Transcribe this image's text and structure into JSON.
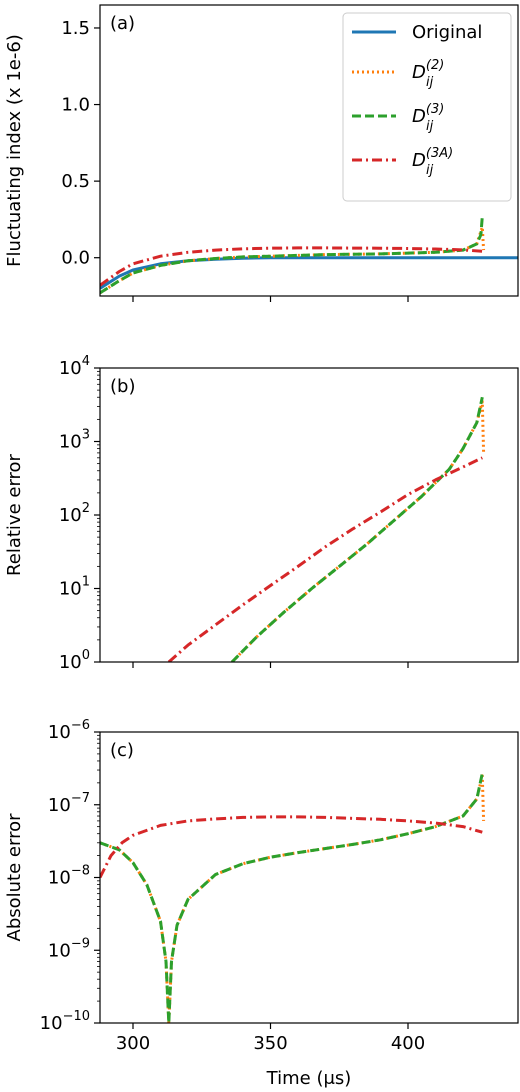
{
  "chart_data": [
    {
      "type": "line",
      "panel_label": "(a)",
      "ylabel": "Fluctuating index (x 1e-6)",
      "xlim": [
        288,
        440
      ],
      "ylim": [
        -0.25,
        1.65
      ],
      "yscale": "linear",
      "xticks": [
        300,
        350,
        400
      ],
      "xticklabels": [
        "",
        "",
        ""
      ],
      "yticks": [
        0.0,
        0.5,
        1.0,
        1.5
      ],
      "yticklabels": [
        "0.0",
        "0.5",
        "1.0",
        "1.5"
      ],
      "grid": false,
      "legend_placement": "top-right",
      "series": [
        {
          "name": "Original",
          "color": "#1f77b4",
          "style": "solid",
          "x": [
            288,
            295,
            300,
            310,
            320,
            330,
            340,
            350,
            370,
            390,
            410,
            427,
            440
          ],
          "y": [
            -0.2,
            -0.12,
            -0.08,
            -0.04,
            -0.02,
            -0.01,
            -0.004,
            0.0,
            0.0,
            0.0,
            0.0,
            0.0,
            0.0
          ]
        },
        {
          "name": "D_ij^(2)",
          "color": "#ff7f0e",
          "style": "dotted",
          "x": [
            288,
            295,
            300,
            310,
            320,
            330,
            340,
            350,
            370,
            390,
            410,
            420,
            425,
            427,
            427.5
          ],
          "y": [
            -0.23,
            -0.15,
            -0.1,
            -0.05,
            -0.02,
            -0.005,
            0.005,
            0.01,
            0.02,
            0.025,
            0.035,
            0.05,
            0.09,
            0.2,
            0.05
          ]
        },
        {
          "name": "D_ij^(3)",
          "color": "#2ca02c",
          "style": "dashed",
          "x": [
            288,
            295,
            300,
            310,
            320,
            330,
            340,
            350,
            370,
            390,
            410,
            420,
            425,
            426.5,
            427
          ],
          "y": [
            -0.23,
            -0.15,
            -0.1,
            -0.05,
            -0.02,
            -0.005,
            0.005,
            0.01,
            0.02,
            0.025,
            0.035,
            0.05,
            0.09,
            0.15,
            0.27
          ]
        },
        {
          "name": "D_ij^(3A)",
          "color": "#d62728",
          "style": "dashdot",
          "x": [
            288,
            295,
            300,
            310,
            320,
            330,
            340,
            350,
            360,
            370,
            380,
            390,
            400,
            410,
            420,
            427
          ],
          "y": [
            -0.18,
            -0.09,
            -0.04,
            0.01,
            0.035,
            0.05,
            0.058,
            0.062,
            0.064,
            0.064,
            0.063,
            0.062,
            0.06,
            0.057,
            0.051,
            0.042
          ]
        }
      ],
      "legend": [
        {
          "label": "Original",
          "base": "Original",
          "sub": "",
          "sup": ""
        },
        {
          "label": "D_ij^(2)",
          "base": "D",
          "sub": "ij",
          "sup": "(2)"
        },
        {
          "label": "D_ij^(3)",
          "base": "D",
          "sub": "ij",
          "sup": "(3)"
        },
        {
          "label": "D_ij^(3A)",
          "base": "D",
          "sub": "ij",
          "sup": "(3A)"
        }
      ]
    },
    {
      "type": "line",
      "panel_label": "(b)",
      "ylabel": "Relative error",
      "xlim": [
        288,
        440
      ],
      "ylim": [
        1,
        10000
      ],
      "yscale": "log",
      "xticks": [
        300,
        350,
        400
      ],
      "xticklabels": [
        "",
        "",
        ""
      ],
      "yticks": [
        1,
        10,
        100,
        1000,
        10000
      ],
      "yticklabels": [
        {
          "base": "10",
          "exp": "0"
        },
        {
          "base": "10",
          "exp": "1"
        },
        {
          "base": "10",
          "exp": "2"
        },
        {
          "base": "10",
          "exp": "3"
        },
        {
          "base": "10",
          "exp": "4"
        }
      ],
      "grid": false,
      "series": [
        {
          "name": "D_ij^(2)",
          "color": "#ff7f0e",
          "style": "dotted",
          "x": [
            336,
            345,
            355,
            365,
            375,
            385,
            395,
            405,
            415,
            420,
            425,
            427,
            427.5
          ],
          "y": [
            1,
            2.2,
            4.8,
            10,
            20,
            40,
            85,
            180,
            420,
            800,
            1800,
            3500,
            700
          ]
        },
        {
          "name": "D_ij^(3)",
          "color": "#2ca02c",
          "style": "dashed",
          "x": [
            336,
            345,
            355,
            365,
            375,
            385,
            395,
            405,
            415,
            420,
            425,
            427
          ],
          "y": [
            1,
            2.2,
            4.8,
            10,
            20,
            40,
            85,
            180,
            420,
            800,
            1800,
            4000
          ]
        },
        {
          "name": "D_ij^(3A)",
          "color": "#d62728",
          "style": "dashdot",
          "x": [
            313,
            320,
            330,
            340,
            350,
            360,
            370,
            380,
            390,
            400,
            410,
            420,
            427
          ],
          "y": [
            1,
            1.7,
            3.2,
            6,
            11,
            20,
            37,
            65,
            110,
            190,
            300,
            450,
            600
          ]
        }
      ]
    },
    {
      "type": "line",
      "panel_label": "(c)",
      "ylabel": "Absolute error",
      "xlabel": "Time (μs)",
      "xlim": [
        288,
        440
      ],
      "ylim": [
        1e-10,
        1e-06
      ],
      "yscale": "log",
      "xticks": [
        300,
        350,
        400
      ],
      "xticklabels": [
        "300",
        "350",
        "400"
      ],
      "yticks": [
        1e-10,
        1e-09,
        1e-08,
        1e-07,
        1e-06
      ],
      "yticklabels": [
        {
          "base": "10",
          "exp": "−10"
        },
        {
          "base": "10",
          "exp": "−9"
        },
        {
          "base": "10",
          "exp": "−8"
        },
        {
          "base": "10",
          "exp": "−7"
        },
        {
          "base": "10",
          "exp": "−6"
        }
      ],
      "grid": false,
      "series": [
        {
          "name": "D_ij^(2)",
          "color": "#ff7f0e",
          "style": "dotted",
          "x": [
            288,
            295,
            300,
            305,
            310,
            312,
            313,
            314,
            316,
            320,
            330,
            340,
            350,
            360,
            370,
            380,
            390,
            400,
            410,
            420,
            425,
            427,
            427.5
          ],
          "y": [
            3e-08,
            2.4e-08,
            1.6e-08,
            8e-09,
            2.5e-09,
            7e-10,
            1e-10,
            7e-10,
            2.2e-09,
            5e-09,
            1.1e-08,
            1.55e-08,
            1.9e-08,
            2.2e-08,
            2.5e-08,
            2.85e-08,
            3.3e-08,
            4e-08,
            5e-08,
            7e-08,
            1.2e-07,
            2.5e-07,
            6e-08
          ]
        },
        {
          "name": "D_ij^(3)",
          "color": "#2ca02c",
          "style": "dashed",
          "x": [
            288,
            295,
            300,
            305,
            310,
            312,
            313,
            314,
            316,
            320,
            330,
            340,
            350,
            360,
            370,
            380,
            390,
            400,
            410,
            420,
            425,
            427
          ],
          "y": [
            3e-08,
            2.4e-08,
            1.6e-08,
            8e-09,
            2.5e-09,
            7e-10,
            1e-10,
            7e-10,
            2.2e-09,
            5e-09,
            1.1e-08,
            1.55e-08,
            1.9e-08,
            2.2e-08,
            2.5e-08,
            2.85e-08,
            3.3e-08,
            4e-08,
            5e-08,
            7e-08,
            1.2e-07,
            2.7e-07
          ]
        },
        {
          "name": "D_ij^(3A)",
          "color": "#d62728",
          "style": "dashdot",
          "x": [
            288,
            292,
            296,
            300,
            310,
            320,
            330,
            340,
            350,
            360,
            370,
            380,
            390,
            400,
            410,
            420,
            427
          ],
          "y": [
            1e-08,
            2e-08,
            3e-08,
            3.8e-08,
            5.2e-08,
            6e-08,
            6.4e-08,
            6.7e-08,
            6.8e-08,
            6.8e-08,
            6.7e-08,
            6.5e-08,
            6.3e-08,
            6e-08,
            5.6e-08,
            5e-08,
            4.2e-08
          ]
        }
      ]
    }
  ]
}
